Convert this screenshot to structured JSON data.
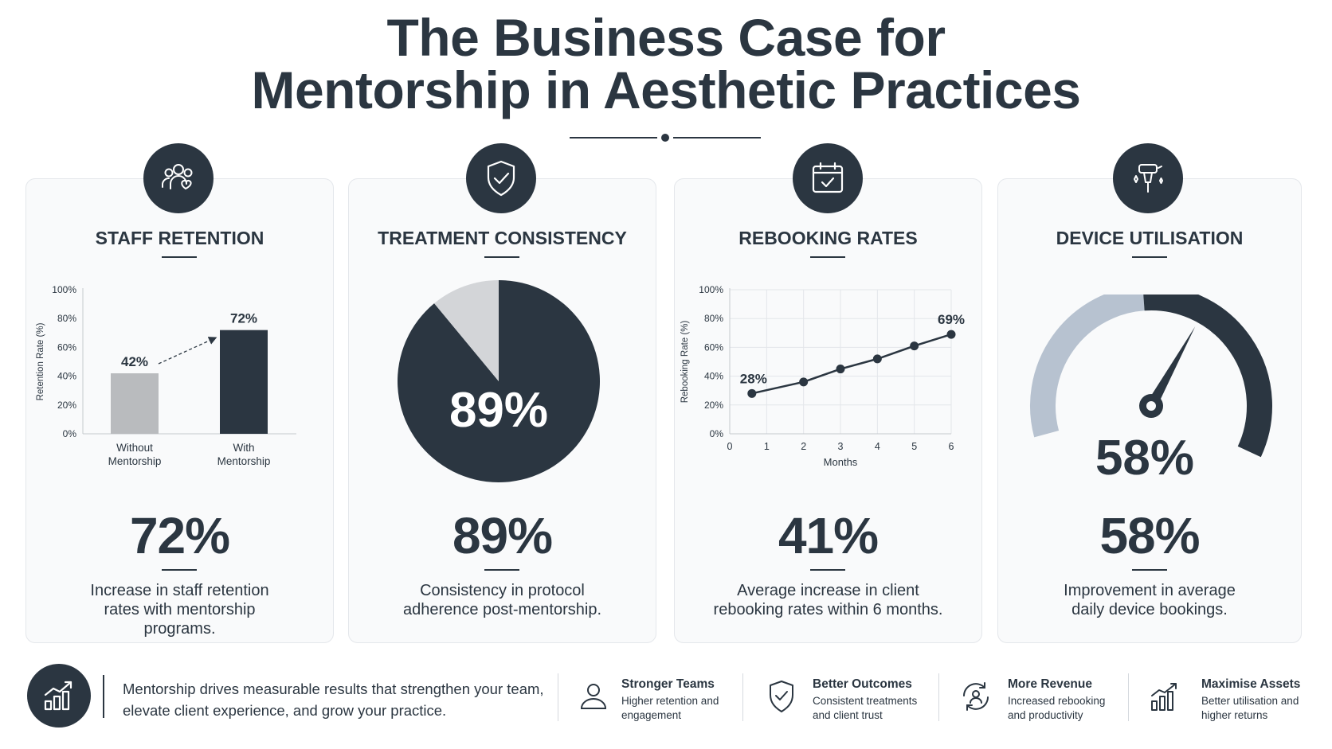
{
  "title": {
    "line1": "The Business Case for",
    "line2": "Mentorship in Aesthetic Practices"
  },
  "colors": {
    "primary": "#2b3641",
    "light_gray": "#b9bbbe",
    "pie_light": "#d3d5d8",
    "gauge_light": "#b7c2d0",
    "card_bg": "#f9fafb"
  },
  "cards": [
    {
      "icon": "people-heart-icon",
      "title": "STAFF RETENTION",
      "stat": "72%",
      "description": [
        "Increase in staff retention",
        "rates with mentorship",
        "programs."
      ]
    },
    {
      "icon": "shield-check-icon",
      "title": "TREATMENT CONSISTENCY",
      "stat": "89%",
      "description": [
        "Consistency in protocol",
        "adherence post-mentorship."
      ]
    },
    {
      "icon": "calendar-check-icon",
      "title": "REBOOKING RATES",
      "stat": "41%",
      "description": [
        "Average increase in client",
        "rebooking rates within 6 months."
      ]
    },
    {
      "icon": "aesthetic-device-icon",
      "title": "DEVICE UTILISATION",
      "stat": "58%",
      "description": [
        "Improvement in average",
        "daily device bookings."
      ]
    }
  ],
  "chart_data": [
    {
      "type": "bar",
      "categories": [
        "Without Mentorship",
        "With Mentorship"
      ],
      "category_lines": [
        [
          "Without",
          "Mentorship"
        ],
        [
          "With",
          "Mentorship"
        ]
      ],
      "values": [
        42,
        72
      ],
      "value_labels": [
        "42%",
        "72%"
      ],
      "ylabel": "Retention Rate (%)",
      "ylim": [
        0,
        100
      ],
      "yticks": [
        "0%",
        "20%",
        "40%",
        "60%",
        "80%",
        "100%"
      ],
      "bar_colors": [
        "#b9bbbe",
        "#2b3641"
      ],
      "annotation": "dashed arrow from 42% bar to 72% bar"
    },
    {
      "type": "pie",
      "values": [
        89,
        11
      ],
      "center_label": "89%",
      "colors": [
        "#2b3641",
        "#d3d5d8"
      ]
    },
    {
      "type": "line",
      "x": [
        0.6,
        2,
        3,
        4,
        5,
        6
      ],
      "values": [
        28,
        36,
        45,
        52,
        61,
        69
      ],
      "point_labels": [
        "28%",
        "",
        "",
        "",
        "",
        "69%"
      ],
      "xlabel": "Months",
      "ylabel": "Rebooking Rate (%)",
      "xticks": [
        "0",
        "1",
        "2",
        "3",
        "4",
        "5",
        "6"
      ],
      "xlim": [
        0,
        6
      ],
      "yticks": [
        "0%",
        "20%",
        "40%",
        "60%",
        "80%",
        "100%"
      ],
      "ylim": [
        0,
        100
      ],
      "grid": true
    },
    {
      "type": "gauge",
      "value": 58,
      "center_label": "58%",
      "colors": [
        "#b7c2d0",
        "#2b3641"
      ]
    }
  ],
  "footer": {
    "icon": "growth-chart-icon",
    "text": "Mentorship drives measurable results that strengthen your team, elevate client experience, and grow your practice.",
    "benefits": [
      {
        "icon": "person-icon",
        "title": "Stronger Teams",
        "description": "Higher retention and engagement"
      },
      {
        "icon": "shield-check-icon",
        "title": "Better Outcomes",
        "description": "Consistent treatments and client trust"
      },
      {
        "icon": "cycle-person-icon",
        "title": "More Revenue",
        "description": "Increased rebooking and productivity"
      },
      {
        "icon": "growth-chart-icon",
        "title": "Maximise Assets",
        "description": "Better utilisation and higher returns"
      }
    ]
  }
}
